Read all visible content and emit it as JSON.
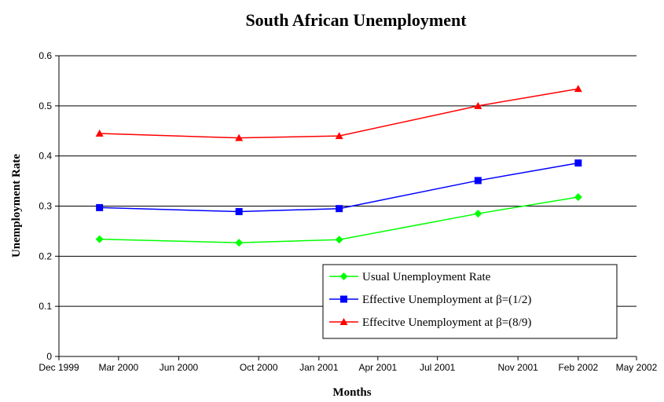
{
  "chart_data": {
    "type": "line",
    "title": "South African Unemployment",
    "xlabel": "Months",
    "ylabel": "Unemployment Rate",
    "ylim": [
      0,
      0.6
    ],
    "yticks": [
      "0",
      "0.1",
      "0.2",
      "0.3",
      "0.4",
      "0.5",
      "0.6"
    ],
    "xlim": [
      "1999-12-01",
      "2002-05-01"
    ],
    "xticks": [
      {
        "date": "1999-12-01",
        "label": "Dec 1999"
      },
      {
        "date": "2000-03-01",
        "label": "Mar 2000"
      },
      {
        "date": "2000-06-01",
        "label": "Jun 2000"
      },
      {
        "date": "2000-10-01",
        "label": "Oct 2000"
      },
      {
        "date": "2001-01-01",
        "label": "Jan 2001"
      },
      {
        "date": "2001-04-01",
        "label": "Apr 2001"
      },
      {
        "date": "2001-07-01",
        "label": "Jul 2001"
      },
      {
        "date": "2001-11-01",
        "label": "Nov 2001"
      },
      {
        "date": "2002-02-01",
        "label": "Feb 2002"
      },
      {
        "date": "2002-05-01",
        "label": "May 2002"
      }
    ],
    "x": [
      "2000-02-01",
      "2000-09-01",
      "2001-02-01",
      "2001-09-01",
      "2002-02-01"
    ],
    "series": [
      {
        "name": "Usual Unemployment Rate",
        "marker": "diamond",
        "color": "#00ff00",
        "values": [
          0.234,
          0.227,
          0.233,
          0.285,
          0.318
        ]
      },
      {
        "name": "Effective Unemployment at β=(1/2)",
        "marker": "square",
        "color": "#0000ff",
        "values": [
          0.297,
          0.289,
          0.295,
          0.351,
          0.386
        ]
      },
      {
        "name": "Effecitve Unemployment at β=(8/9)",
        "marker": "triangle",
        "color": "#ff0000",
        "values": [
          0.445,
          0.436,
          0.44,
          0.5,
          0.534
        ]
      }
    ],
    "grid": true,
    "legend": "bottom-right"
  }
}
